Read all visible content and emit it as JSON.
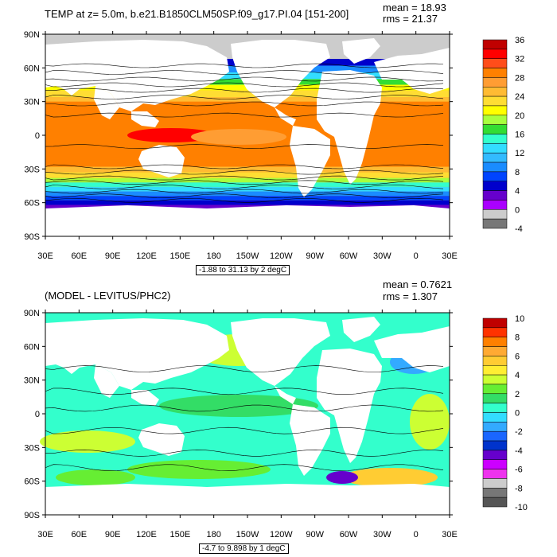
{
  "panels": [
    {
      "id": "top",
      "title": "TEMP at z=   5.0m, b.e21.B1850CLM50SP.f09_g17.PI.04 [151-200]",
      "mean": "mean = 18.93",
      "rms": "rms = 21.37",
      "range": "-1.88 to 31.13 by 2 degC",
      "lat_labels": [
        "90N",
        "60N",
        "30N",
        "0",
        "30S",
        "60S",
        "90S"
      ],
      "lon_labels": [
        "30E",
        "60E",
        "90E",
        "120E",
        "150E",
        "180",
        "150W",
        "120W",
        "90W",
        "60W",
        "30W",
        "0",
        "30E"
      ],
      "colorbar_labels": [
        "36",
        "32",
        "28",
        "24",
        "20",
        "16",
        "12",
        "8",
        "4",
        "0",
        "-4"
      ],
      "colorbar_colors": [
        "#c00000",
        "#ff0000",
        "#ff4d1a",
        "#ff8000",
        "#ff9d33",
        "#ffbb33",
        "#ffdd33",
        "#ffff00",
        "#a8ff3e",
        "#33dd33",
        "#33ffcc",
        "#33ddff",
        "#33bbff",
        "#1a8cff",
        "#0044ff",
        "#0000cc",
        "#6600cc",
        "#aa00ff",
        "#cccccc",
        "#777777"
      ]
    },
    {
      "id": "bottom",
      "title": "(MODEL - LEVITUS/PHC2)",
      "mean": "mean = 0.7621",
      "rms": "rms = 1.307",
      "range": "-4.7 to 9.898 by 1 degC",
      "lat_labels": [
        "90N",
        "60N",
        "30N",
        "0",
        "30S",
        "60S",
        "90S"
      ],
      "lon_labels": [
        "30E",
        "60E",
        "90E",
        "120E",
        "150E",
        "180",
        "150W",
        "120W",
        "90W",
        "60W",
        "30W",
        "0",
        "30E"
      ],
      "colorbar_labels": [
        "10",
        "8",
        "6",
        "4",
        "2",
        "0",
        "-2",
        "-4",
        "-6",
        "-8",
        "-10"
      ],
      "colorbar_colors": [
        "#c00000",
        "#ff3300",
        "#ff8000",
        "#ffaa33",
        "#ffcc33",
        "#ffee33",
        "#ccff33",
        "#66ee33",
        "#33dd66",
        "#33ffcc",
        "#33ddff",
        "#33aaff",
        "#1a66ff",
        "#0033cc",
        "#6600cc",
        "#cc00ff",
        "#ee33ee",
        "#cccccc",
        "#777777",
        "#555555"
      ]
    }
  ]
}
